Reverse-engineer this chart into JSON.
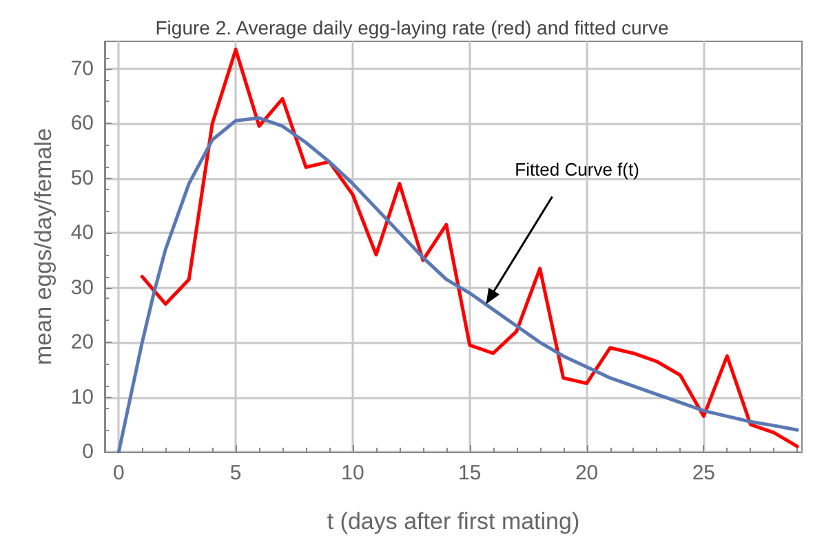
{
  "chart_data": {
    "type": "line",
    "title": "Figure 2. Average daily egg-laying rate (red) and fitted curve",
    "xlabel": "t (days after first mating)",
    "ylabel": "mean eggs/day/female",
    "xlim": [
      -0.6,
      29.2
    ],
    "xticks": [
      0,
      5,
      10,
      15,
      20,
      25
    ],
    "ylim": [
      0,
      75
    ],
    "yticks": [
      0,
      10,
      20,
      30,
      40,
      50,
      60,
      70
    ],
    "grid": true,
    "marker": "none",
    "line_style": "solid",
    "annotations": [
      {
        "text": "Fitted Curve f(t)",
        "x": 15.7,
        "y": 27
      }
    ],
    "series": [
      {
        "color": "#ff0000",
        "x": [
          1,
          2,
          3,
          4,
          5,
          6,
          7,
          8,
          9,
          10,
          11,
          12,
          13,
          14,
          15,
          16,
          17,
          18,
          19,
          20,
          21,
          22,
          23,
          24,
          25,
          26,
          27,
          28,
          29
        ],
        "values": [
          32,
          27,
          31.5,
          60,
          73.5,
          59.5,
          64.5,
          52,
          53,
          47,
          36,
          49,
          35,
          41.5,
          19.5,
          18,
          22,
          33.5,
          13.5,
          12.5,
          19,
          18,
          16.5,
          14,
          6.5,
          17.5,
          5,
          3.5,
          1
        ]
      },
      {
        "color": "#5a78b4",
        "x": [
          0,
          0.5,
          1,
          1.5,
          2,
          3,
          4,
          5,
          6,
          7,
          8,
          9,
          10,
          11,
          12,
          13,
          14,
          15,
          16,
          17,
          18,
          19,
          20,
          21,
          22,
          23,
          24,
          25,
          26,
          27,
          28,
          29
        ],
        "values": [
          0,
          10,
          20,
          29,
          37,
          49,
          57,
          60.5,
          61,
          59.5,
          56.5,
          53,
          49,
          44.5,
          40,
          35.5,
          31.5,
          29,
          26,
          23,
          20,
          17.5,
          15.5,
          13.5,
          12,
          10.5,
          9,
          7.5,
          6.5,
          5.5,
          4.8,
          4
        ]
      }
    ]
  }
}
